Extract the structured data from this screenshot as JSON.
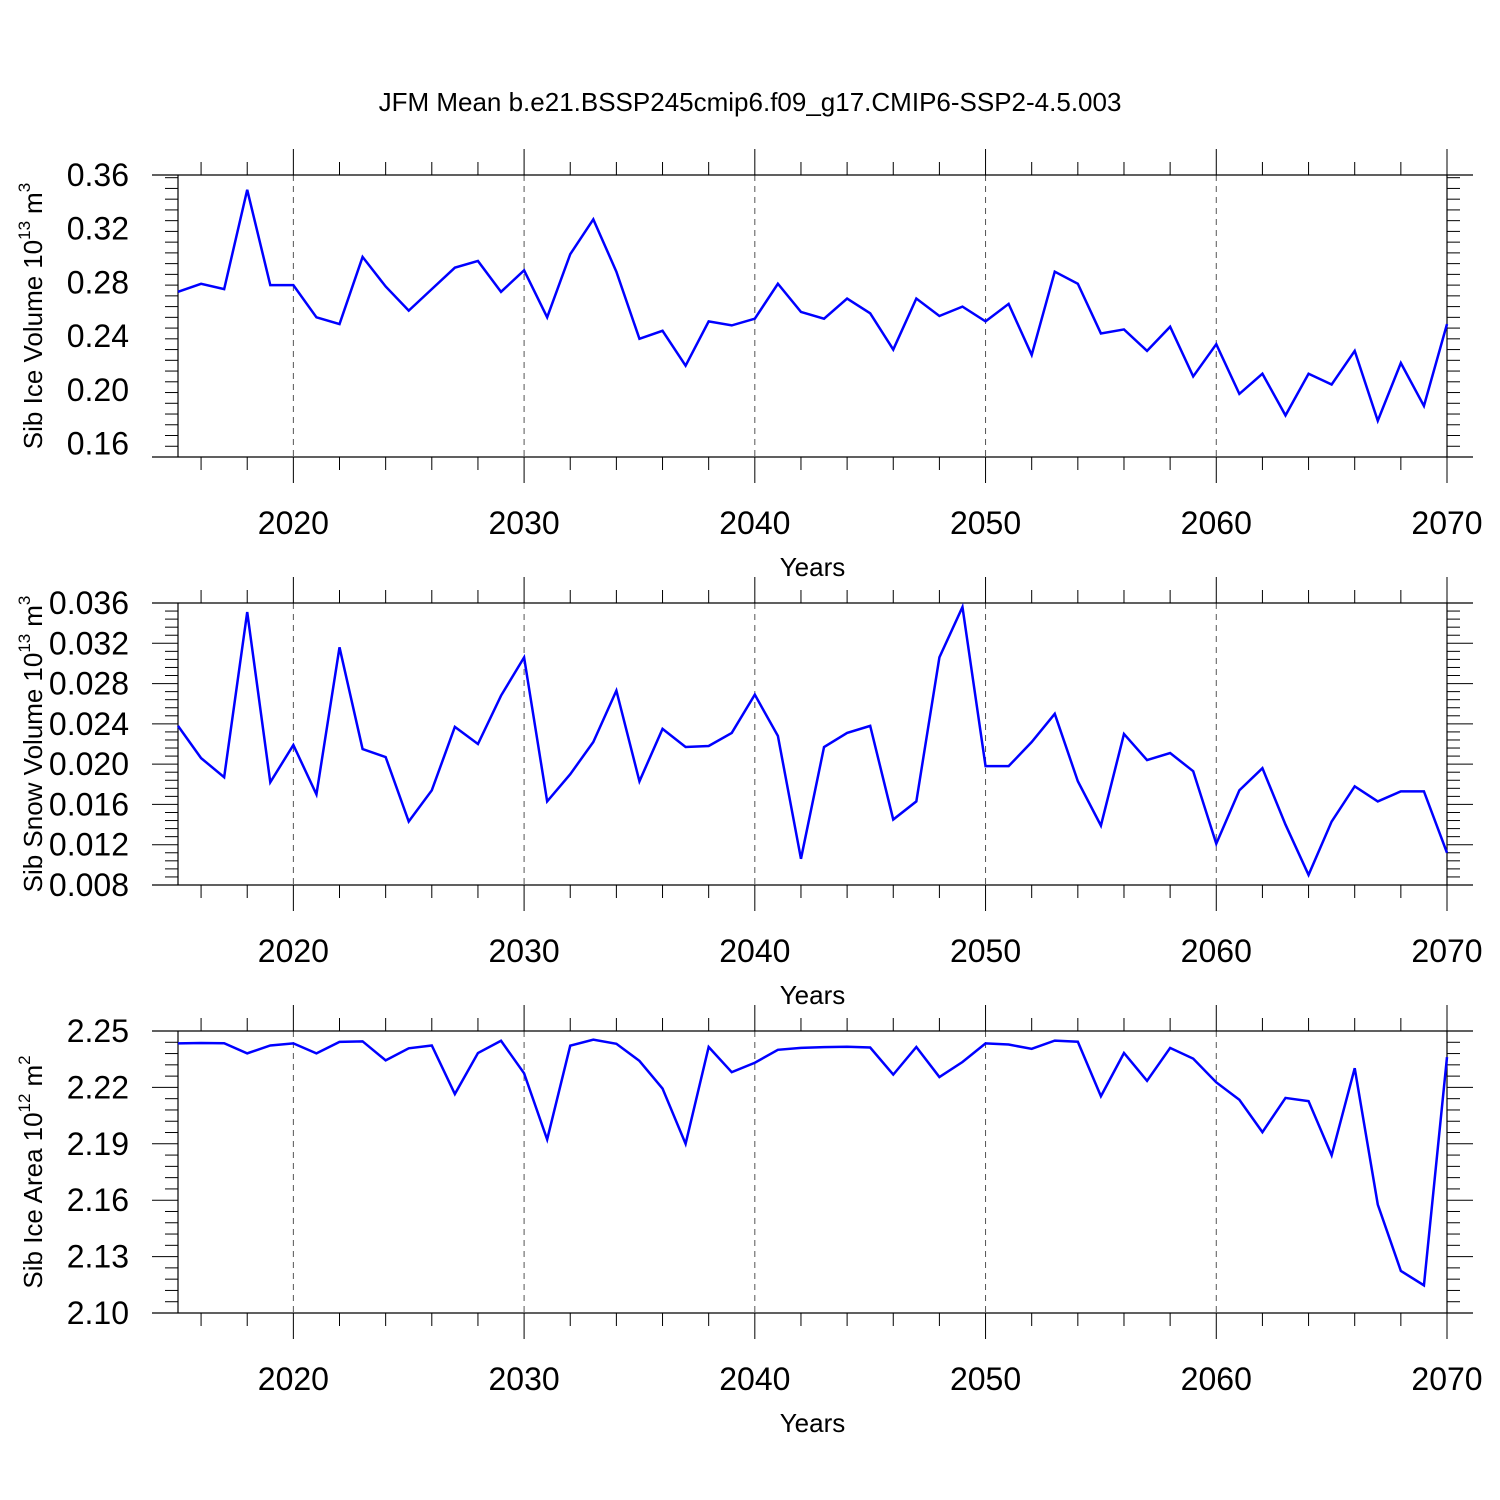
{
  "title": "JFM Mean b.e21.BSSP245cmip6.f09_g17.CMIP6-SSP2-4.5.003",
  "colors": {
    "series": "#0000ff",
    "axes": "#000000",
    "grid": "#555555"
  },
  "chart_data": [
    {
      "type": "line",
      "ylabel": "Sib Ice Volume",
      "yunit_base": "10",
      "yunit_exp": "13",
      "yunit_suffix": "m",
      "yunit_suffix_exp": "3",
      "xlabel": "Years",
      "xlim": [
        2015,
        2070
      ],
      "ylim": [
        0.15,
        0.36
      ],
      "xticks": [
        2020,
        2030,
        2040,
        2050,
        2060,
        2070
      ],
      "xtick_labels": [
        "2020",
        "2030",
        "2040",
        "2050",
        "2060",
        "2070"
      ],
      "yticks": [
        0.16,
        0.2,
        0.24,
        0.28,
        0.32,
        0.36
      ],
      "ytick_labels": [
        "0.16",
        "0.20",
        "0.24",
        "0.28",
        "0.32",
        "0.36"
      ],
      "yminor_step": 0.008,
      "grid": "x-dashed",
      "x": [
        2015,
        2016,
        2017,
        2018,
        2019,
        2020,
        2021,
        2022,
        2023,
        2024,
        2025,
        2026,
        2027,
        2028,
        2029,
        2030,
        2031,
        2032,
        2033,
        2034,
        2035,
        2036,
        2037,
        2038,
        2039,
        2040,
        2041,
        2042,
        2043,
        2044,
        2045,
        2046,
        2047,
        2048,
        2049,
        2050,
        2051,
        2052,
        2053,
        2054,
        2055,
        2056,
        2057,
        2058,
        2059,
        2060,
        2061,
        2062,
        2063,
        2064,
        2065,
        2066,
        2067,
        2068,
        2069,
        2070
      ],
      "series": [
        {
          "name": "Sib Ice Volume",
          "values": [
            0.273,
            0.279,
            0.275,
            0.349,
            0.278,
            0.278,
            0.254,
            0.249,
            0.299,
            0.277,
            0.259,
            0.275,
            0.291,
            0.296,
            0.273,
            0.289,
            0.254,
            0.301,
            0.327,
            0.288,
            0.238,
            0.244,
            0.218,
            0.251,
            0.248,
            0.253,
            0.279,
            0.258,
            0.253,
            0.268,
            0.257,
            0.23,
            0.268,
            0.255,
            0.262,
            0.251,
            0.264,
            0.226,
            0.288,
            0.279,
            0.242,
            0.245,
            0.229,
            0.247,
            0.21,
            0.234,
            0.197,
            0.212,
            0.181,
            0.212,
            0.204,
            0.229,
            0.177,
            0.22,
            0.188,
            0.249
          ]
        }
      ]
    },
    {
      "type": "line",
      "ylabel": "Sib Snow Volume",
      "yunit_base": "10",
      "yunit_exp": "13",
      "yunit_suffix": "m",
      "yunit_suffix_exp": "3",
      "xlabel": "Years",
      "xlim": [
        2015,
        2070
      ],
      "ylim": [
        0.008,
        0.036
      ],
      "xticks": [
        2020,
        2030,
        2040,
        2050,
        2060,
        2070
      ],
      "xtick_labels": [
        "2020",
        "2030",
        "2040",
        "2050",
        "2060",
        "2070"
      ],
      "yticks": [
        0.008,
        0.012,
        0.016,
        0.02,
        0.024,
        0.028,
        0.032,
        0.036
      ],
      "ytick_labels": [
        "0.008",
        "0.012",
        "0.016",
        "0.020",
        "0.024",
        "0.028",
        "0.032",
        "0.036"
      ],
      "yminor_step": 0.0008,
      "grid": "x-dashed",
      "x": [
        2015,
        2016,
        2017,
        2018,
        2019,
        2020,
        2021,
        2022,
        2023,
        2024,
        2025,
        2026,
        2027,
        2028,
        2029,
        2030,
        2031,
        2032,
        2033,
        2034,
        2035,
        2036,
        2037,
        2038,
        2039,
        2040,
        2041,
        2042,
        2043,
        2044,
        2045,
        2046,
        2047,
        2048,
        2049,
        2050,
        2051,
        2052,
        2053,
        2054,
        2055,
        2056,
        2057,
        2058,
        2059,
        2060,
        2061,
        2062,
        2063,
        2064,
        2065,
        2066,
        2067,
        2068,
        2069,
        2070
      ],
      "series": [
        {
          "name": "Sib Snow Volume",
          "values": [
            0.0238,
            0.0206,
            0.0187,
            0.0351,
            0.0182,
            0.0219,
            0.017,
            0.0316,
            0.0215,
            0.0207,
            0.0143,
            0.0174,
            0.0237,
            0.022,
            0.0268,
            0.0306,
            0.0163,
            0.019,
            0.0222,
            0.0273,
            0.0183,
            0.0235,
            0.0217,
            0.0218,
            0.0231,
            0.0269,
            0.0228,
            0.0106,
            0.0217,
            0.0231,
            0.0238,
            0.0145,
            0.0163,
            0.0306,
            0.0356,
            0.0198,
            0.0198,
            0.0222,
            0.025,
            0.0183,
            0.0139,
            0.023,
            0.0204,
            0.0211,
            0.0193,
            0.0121,
            0.0174,
            0.0196,
            0.014,
            0.009,
            0.0143,
            0.0178,
            0.0163,
            0.0173,
            0.0173,
            0.0112
          ]
        }
      ]
    },
    {
      "type": "line",
      "ylabel": "Sib Ice Area",
      "yunit_base": "10",
      "yunit_exp": "12",
      "yunit_suffix": "m",
      "yunit_suffix_exp": "2",
      "xlabel": "Years",
      "xlim": [
        2015,
        2070
      ],
      "ylim": [
        2.1,
        2.25
      ],
      "xticks": [
        2020,
        2030,
        2040,
        2050,
        2060,
        2070
      ],
      "xtick_labels": [
        "2020",
        "2030",
        "2040",
        "2050",
        "2060",
        "2070"
      ],
      "yticks": [
        2.1,
        2.13,
        2.16,
        2.19,
        2.22,
        2.25
      ],
      "ytick_labels": [
        "2.10",
        "2.13",
        "2.16",
        "2.19",
        "2.22",
        "2.25"
      ],
      "yminor_step": 0.006,
      "grid": "x-dashed",
      "x": [
        2015,
        2016,
        2017,
        2018,
        2019,
        2020,
        2021,
        2022,
        2023,
        2024,
        2025,
        2026,
        2027,
        2028,
        2029,
        2030,
        2031,
        2032,
        2033,
        2034,
        2035,
        2036,
        2037,
        2038,
        2039,
        2040,
        2041,
        2042,
        2043,
        2044,
        2045,
        2046,
        2047,
        2048,
        2049,
        2050,
        2051,
        2052,
        2053,
        2054,
        2055,
        2056,
        2057,
        2058,
        2059,
        2060,
        2061,
        2062,
        2063,
        2064,
        2065,
        2066,
        2067,
        2068,
        2069,
        2070
      ],
      "series": [
        {
          "name": "Sib Ice Area",
          "values": [
            2.2434,
            2.2436,
            2.2435,
            2.2381,
            2.2423,
            2.2434,
            2.2381,
            2.2442,
            2.2445,
            2.2344,
            2.2408,
            2.2423,
            2.2165,
            2.2383,
            2.2448,
            2.2275,
            2.1923,
            2.2422,
            2.2454,
            2.2432,
            2.2341,
            2.2194,
            2.19,
            2.2415,
            2.2281,
            2.2331,
            2.24,
            2.241,
            2.2414,
            2.2416,
            2.2412,
            2.2268,
            2.2415,
            2.2255,
            2.2335,
            2.2434,
            2.2428,
            2.2405,
            2.2449,
            2.2443,
            2.2153,
            2.2383,
            2.2235,
            2.241,
            2.2353,
            2.2227,
            2.2134,
            2.1962,
            2.2144,
            2.2127,
            2.1839,
            2.2302,
            2.1577,
            2.1224,
            2.1147,
            2.2361
          ]
        }
      ]
    }
  ]
}
